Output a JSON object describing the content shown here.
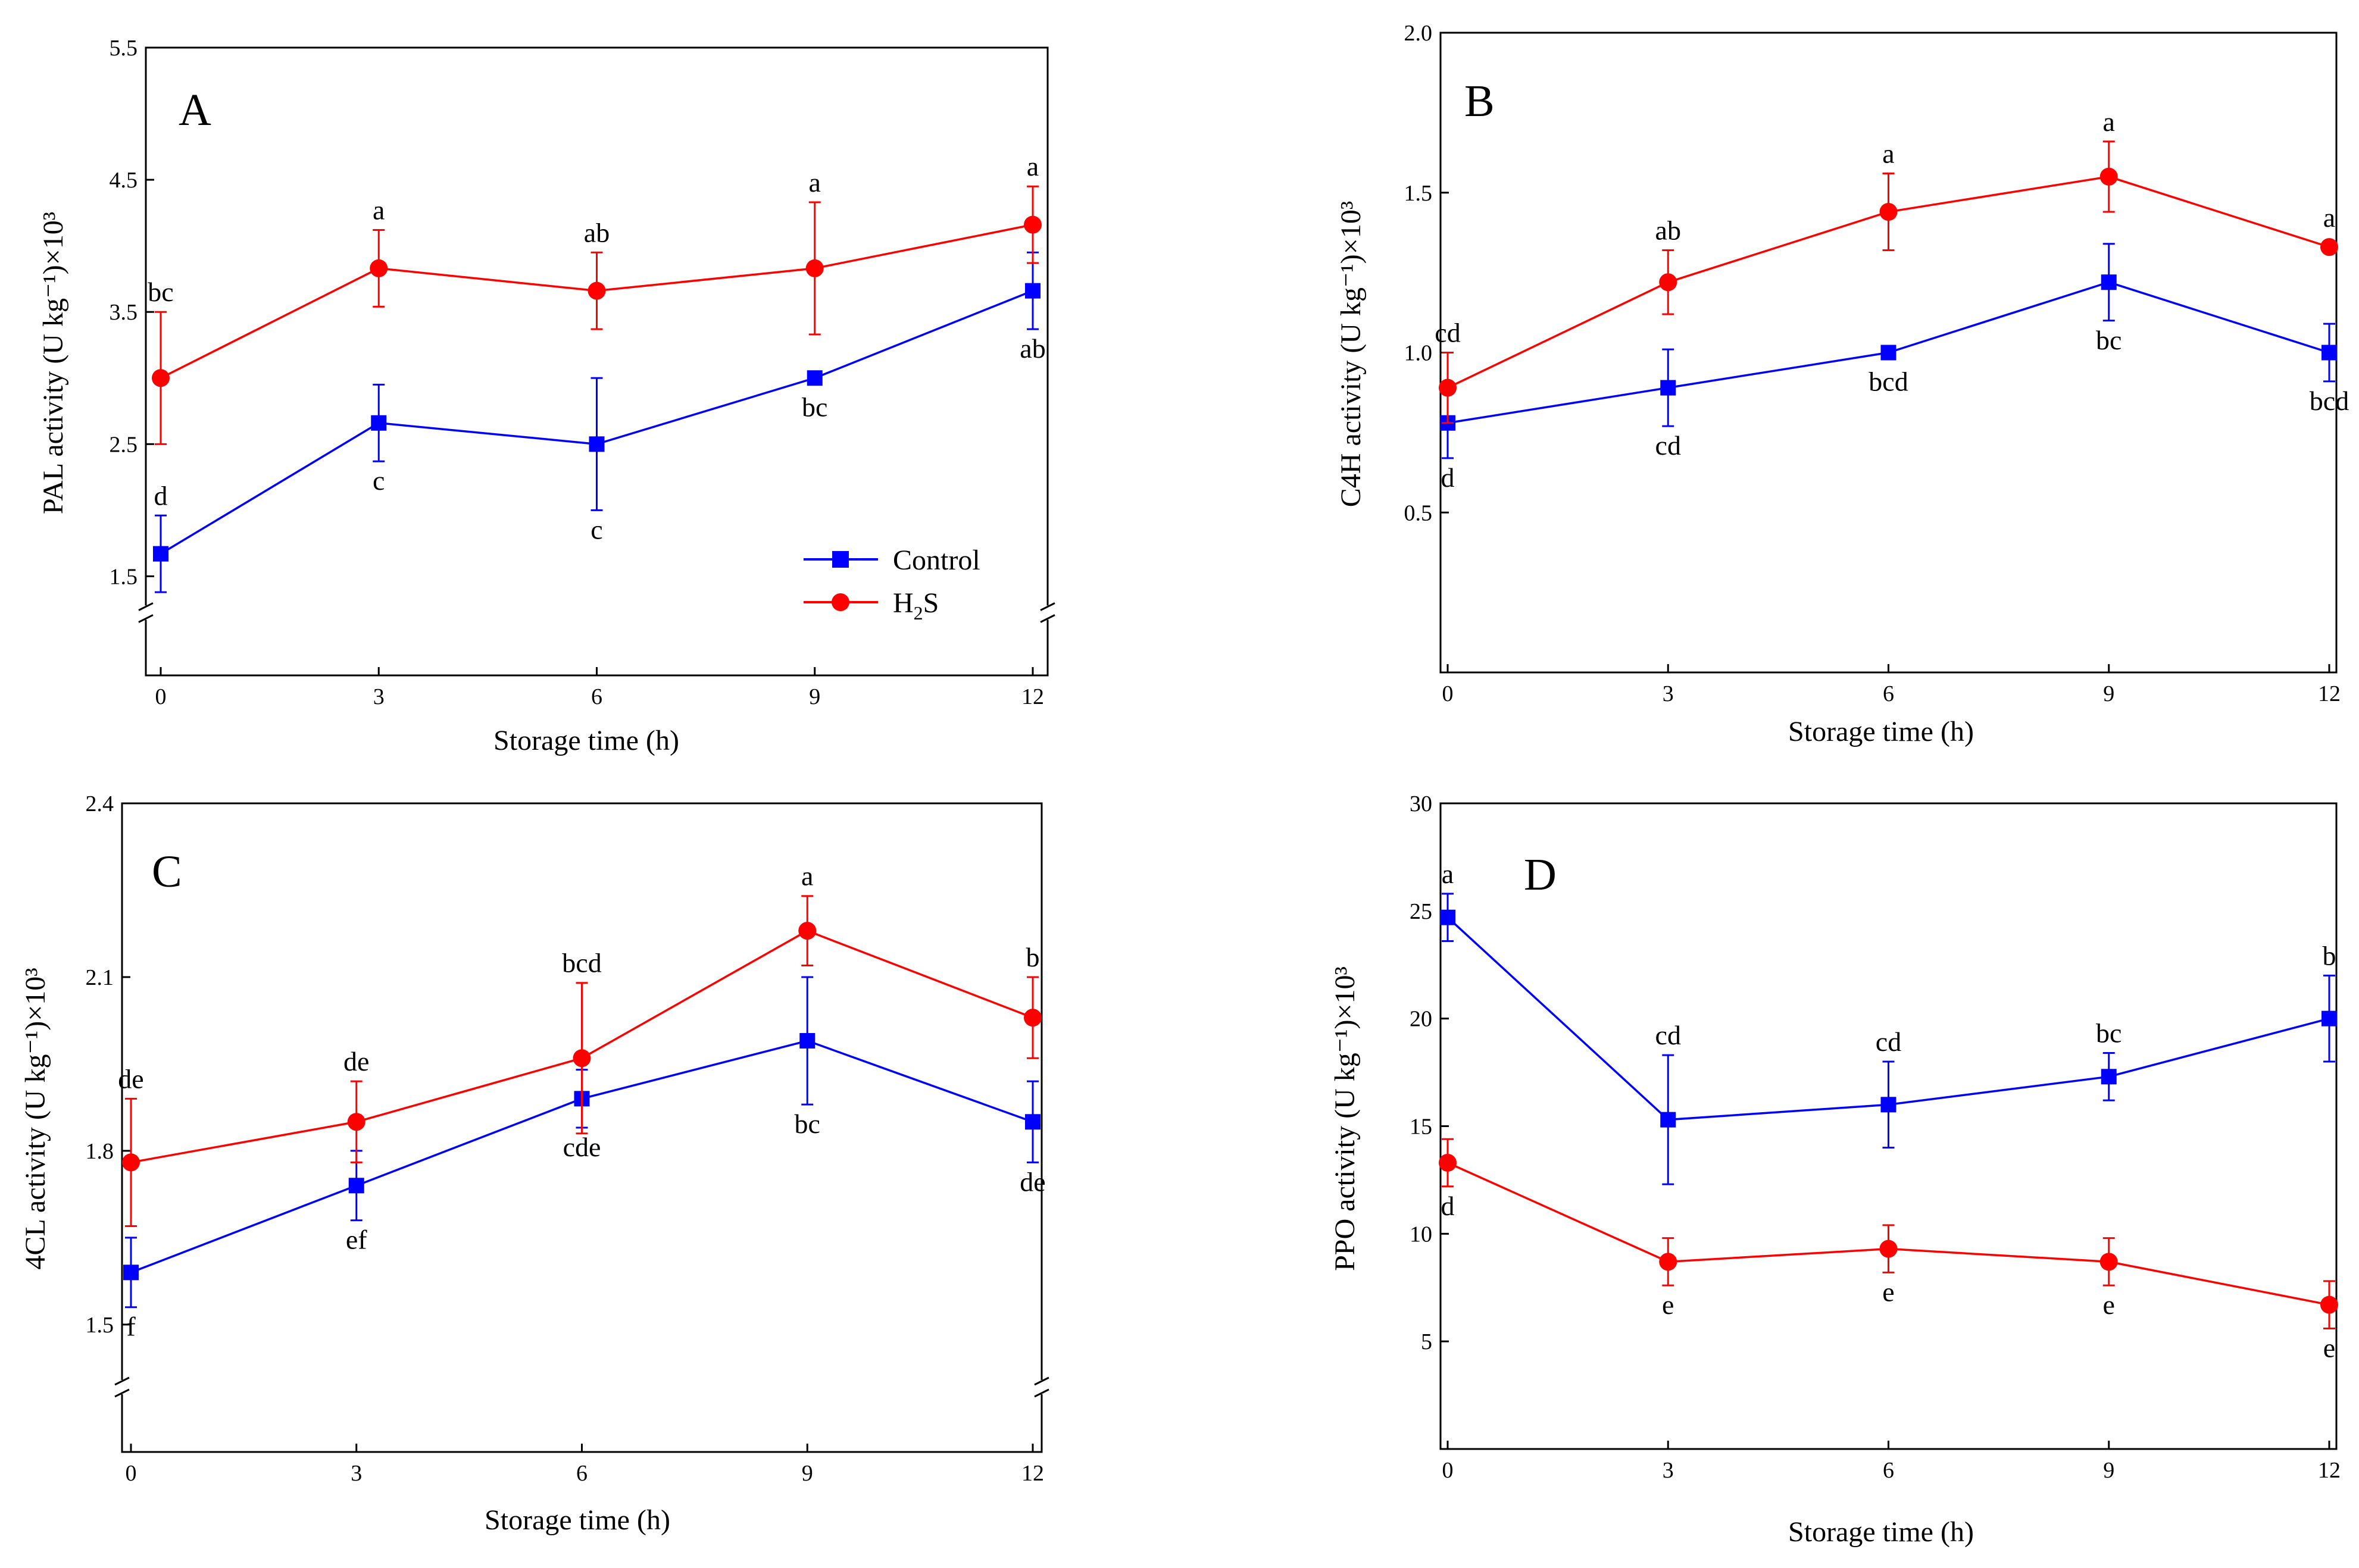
{
  "colors": {
    "control": "#0000ff",
    "h2s": "#ff0000",
    "axis": "#000000"
  },
  "legend": {
    "control": "Control",
    "h2s_main": "H",
    "h2s_sub": "2",
    "h2s_tail": "S"
  },
  "chart_data": [
    {
      "panel": "A",
      "type": "line",
      "xlabel": "Storage time (h)",
      "ylabel": "PAL activity (U kg⁻¹)×10³",
      "x": [
        0,
        3,
        6,
        9,
        12
      ],
      "xticks": [
        "0",
        "3",
        "6",
        "9",
        "12"
      ],
      "ylim": [
        0.75,
        5.5
      ],
      "yticks": [
        1.5,
        2.5,
        3.5,
        4.5,
        5.5
      ],
      "ytick_labels": [
        "1.5",
        "2.5",
        "3.5",
        "4.5",
        "5.5"
      ],
      "axis_break": true,
      "legend_position": "lower-right",
      "series": [
        {
          "name": "Control",
          "color": "#0000ff",
          "marker": "square",
          "values": [
            1.67,
            2.66,
            2.5,
            3.0,
            3.66
          ],
          "errors": [
            0.29,
            0.29,
            0.5,
            0.0,
            0.29
          ],
          "labels": [
            "d",
            "c",
            "c",
            "bc",
            "ab"
          ]
        },
        {
          "name": "H2S",
          "color": "#ff0000",
          "marker": "circle",
          "values": [
            3.0,
            3.83,
            3.66,
            3.83,
            4.16
          ],
          "errors": [
            0.5,
            0.29,
            0.29,
            0.5,
            0.29
          ],
          "labels": [
            "bc",
            "a",
            "ab",
            "a",
            "a"
          ]
        }
      ]
    },
    {
      "panel": "B",
      "type": "line",
      "xlabel": "Storage time (h)",
      "ylabel": "C4H activity (U kg⁻¹)×10³",
      "x": [
        0,
        3,
        6,
        9,
        12
      ],
      "xticks": [
        "0",
        "3",
        "6",
        "9",
        "12"
      ],
      "ylim": [
        0.0,
        2.0
      ],
      "yticks": [
        0.5,
        1.0,
        1.5,
        2.0
      ],
      "ytick_labels": [
        "0.5",
        "1.0",
        "1.5",
        "2.0"
      ],
      "axis_break": false,
      "series": [
        {
          "name": "Control",
          "color": "#0000ff",
          "marker": "square",
          "values": [
            0.78,
            0.89,
            1.0,
            1.22,
            1.0
          ],
          "errors": [
            0.11,
            0.12,
            0.0,
            0.12,
            0.09
          ],
          "labels": [
            "d",
            "cd",
            "bcd",
            "bc",
            "bcd"
          ]
        },
        {
          "name": "H2S",
          "color": "#ff0000",
          "marker": "circle",
          "values": [
            0.89,
            1.22,
            1.44,
            1.55,
            1.33
          ],
          "errors": [
            0.11,
            0.1,
            0.12,
            0.11,
            0.0
          ],
          "labels": [
            "cd",
            "ab",
            "a",
            "a",
            "a"
          ]
        }
      ]
    },
    {
      "panel": "C",
      "type": "line",
      "xlabel": "Storage time (h)",
      "ylabel": "4CL activity (U kg⁻¹)×10³",
      "x": [
        0,
        3,
        6,
        9,
        12
      ],
      "xticks": [
        "0",
        "3",
        "6",
        "9",
        "12"
      ],
      "ylim": [
        1.28,
        2.4
      ],
      "yticks": [
        1.5,
        1.8,
        2.1,
        2.4
      ],
      "ytick_labels": [
        "1.5",
        "1.8",
        "2.1",
        "2.4"
      ],
      "axis_break": true,
      "series": [
        {
          "name": "Control",
          "color": "#0000ff",
          "marker": "square",
          "values": [
            1.59,
            1.74,
            1.89,
            1.99,
            1.85
          ],
          "errors": [
            0.06,
            0.06,
            0.05,
            0.11,
            0.07
          ],
          "labels": [
            "f",
            "ef",
            "cde",
            "bc",
            "de"
          ]
        },
        {
          "name": "H2S",
          "color": "#ff0000",
          "marker": "circle",
          "values": [
            1.78,
            1.85,
            1.96,
            2.18,
            2.03
          ],
          "errors": [
            0.11,
            0.07,
            0.13,
            0.06,
            0.07
          ],
          "labels": [
            "de",
            "de",
            "bcd",
            "a",
            "b"
          ]
        }
      ]
    },
    {
      "panel": "D",
      "type": "line",
      "xlabel": "Storage time (h)",
      "ylabel": "PPO activity (U kg⁻¹)×10³",
      "x": [
        0,
        3,
        6,
        9,
        12
      ],
      "xticks": [
        "0",
        "3",
        "6",
        "9",
        "12"
      ],
      "ylim": [
        0,
        30
      ],
      "yticks": [
        5,
        10,
        15,
        20,
        25,
        30
      ],
      "ytick_labels": [
        "5",
        "10",
        "15",
        "20",
        "25",
        "30"
      ],
      "axis_break": false,
      "series": [
        {
          "name": "Control",
          "color": "#0000ff",
          "marker": "square",
          "values": [
            24.7,
            15.3,
            16.0,
            17.3,
            20.0
          ],
          "errors": [
            1.1,
            3.0,
            2.0,
            1.1,
            2.0
          ],
          "labels": [
            "a",
            "cd",
            "cd",
            "bc",
            "b"
          ]
        },
        {
          "name": "H2S",
          "color": "#ff0000",
          "marker": "circle",
          "values": [
            13.3,
            8.7,
            9.3,
            8.7,
            6.7
          ],
          "errors": [
            1.1,
            1.1,
            1.1,
            1.1,
            1.1
          ],
          "labels": [
            "d",
            "e",
            "e",
            "e",
            "e"
          ]
        }
      ]
    }
  ]
}
